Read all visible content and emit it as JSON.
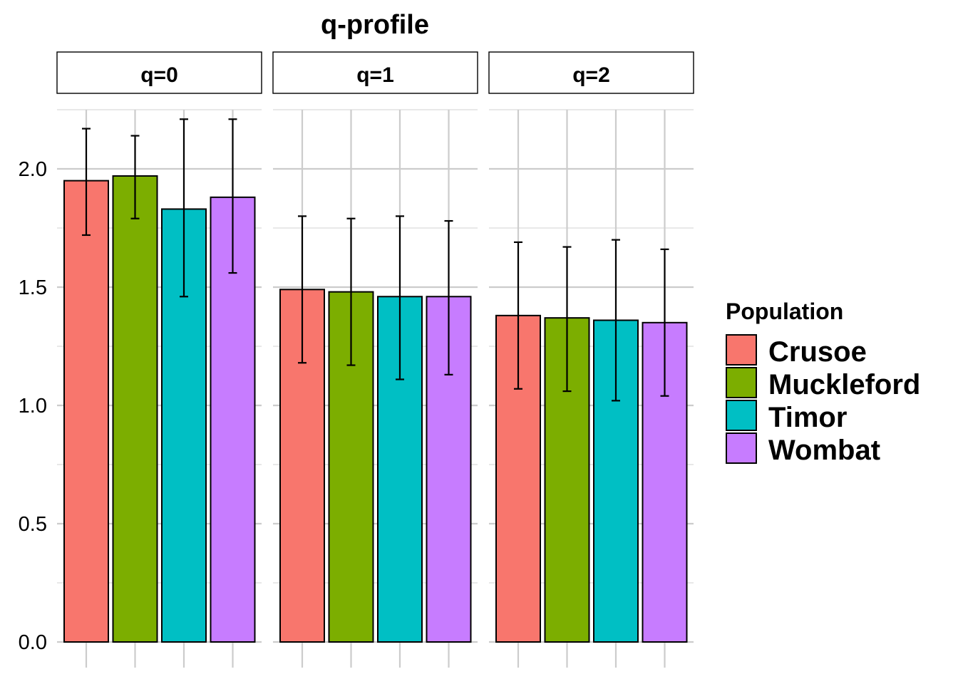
{
  "chart_data": {
    "type": "bar",
    "title": "q-profile",
    "xlabel": "",
    "ylabel": "",
    "ylim": [
      0,
      2.25
    ],
    "yticks": [
      "0.0",
      "0.5",
      "1.0",
      "1.5",
      "2.0"
    ],
    "grid": true,
    "facets": [
      "q=0",
      "q=1",
      "q=2"
    ],
    "categories": [
      "Crusoe",
      "Muckleford",
      "Timor",
      "Wombat"
    ],
    "colors": {
      "Crusoe": "#F8766D",
      "Muckleford": "#7CAE00",
      "Timor": "#00BFC4",
      "Wombat": "#C77CFF"
    },
    "legend": {
      "title": "Population",
      "position": "right",
      "items": [
        "Crusoe",
        "Muckleford",
        "Timor",
        "Wombat"
      ]
    },
    "series": [
      {
        "facet": "q=0",
        "values": [
          1.95,
          1.97,
          1.83,
          1.88
        ],
        "lower": [
          1.72,
          1.79,
          1.46,
          1.56
        ],
        "upper": [
          2.17,
          2.14,
          2.21,
          2.21
        ]
      },
      {
        "facet": "q=1",
        "values": [
          1.49,
          1.48,
          1.46,
          1.46
        ],
        "lower": [
          1.18,
          1.17,
          1.11,
          1.13
        ],
        "upper": [
          1.8,
          1.79,
          1.8,
          1.78
        ]
      },
      {
        "facet": "q=2",
        "values": [
          1.38,
          1.37,
          1.36,
          1.35
        ],
        "lower": [
          1.07,
          1.06,
          1.02,
          1.04
        ],
        "upper": [
          1.69,
          1.67,
          1.7,
          1.66
        ]
      }
    ]
  }
}
